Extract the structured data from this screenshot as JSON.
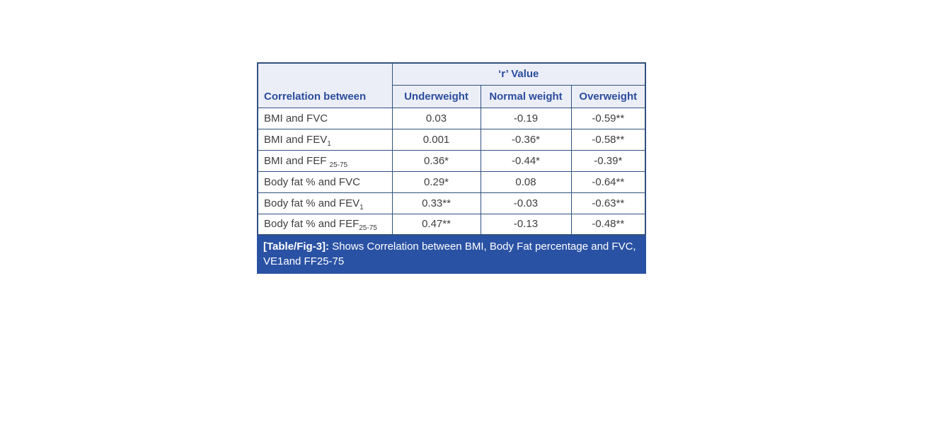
{
  "table": {
    "header": {
      "corr_col": "Correlation between",
      "group": "‘r’ Value",
      "columns": [
        "Underweight",
        "Normal weight",
        "Overweight"
      ]
    },
    "rows": [
      {
        "label": "BMI and FVC",
        "sub": "",
        "values": [
          "0.03",
          "-0.19",
          "-0.59**"
        ]
      },
      {
        "label": "BMI and FEV",
        "sub": "1",
        "values": [
          "0.001",
          "-0.36*",
          "-0.58**"
        ]
      },
      {
        "label": "BMI and FEF ",
        "sub": "25-75",
        "values": [
          "0.36*",
          "-0.44*",
          "-0.39*"
        ]
      },
      {
        "label": "Body fat % and FVC",
        "sub": "",
        "values": [
          "0.29*",
          "0.08",
          "-0.64**"
        ]
      },
      {
        "label": "Body fat % and FEV",
        "sub": "1",
        "values": [
          "0.33**",
          "-0.03",
          "-0.63**"
        ]
      },
      {
        "label": "Body fat % and FEF",
        "sub": "25-75",
        "values": [
          "0.47**",
          "-0.13",
          "-0.48**"
        ]
      }
    ],
    "caption": {
      "bold": "[Table/Fig-3]:",
      "text": " Shows Correlation between BMI, Body Fat percentage and FVC, VE1and FF25-75"
    }
  },
  "colors": {
    "border": "#31517e",
    "header_bg": "#eceef7",
    "header_text": "#2b4c9d",
    "caption_bg": "#2a52a4",
    "caption_text": "#ffffff",
    "body_text": "#3e3e3e",
    "page_bg": "#ffffff"
  }
}
